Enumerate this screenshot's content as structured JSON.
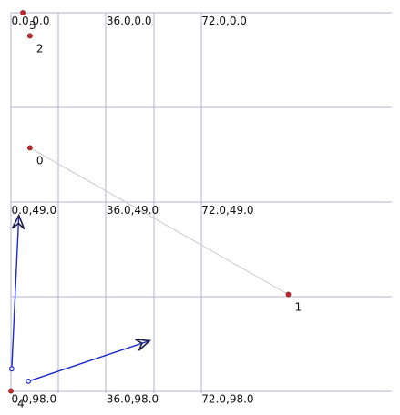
{
  "grid": {
    "x_values": [
      0,
      36,
      72
    ],
    "y_values": [
      0,
      49,
      98
    ],
    "labels": [
      {
        "id": "x0-y0",
        "text": "0.0,0.0"
      },
      {
        "id": "x36-y0",
        "text": "36.0,0.0"
      },
      {
        "id": "x72-y0",
        "text": "72.0,0.0"
      },
      {
        "id": "x0-y49",
        "text": "0.0,49.0"
      },
      {
        "id": "x36-y49",
        "text": "36.0,49.0"
      },
      {
        "id": "x72-y49",
        "text": "72.0,49.0"
      },
      {
        "id": "x0-y98",
        "text": "0.0,98.0"
      },
      {
        "id": "x36-y98",
        "text": "36.0,98.0"
      },
      {
        "id": "x72-y98",
        "text": "72.0,98.0"
      }
    ]
  },
  "points": [
    {
      "label": "0",
      "x": 7.2,
      "y": 35.0
    },
    {
      "label": "1",
      "x": 105.0,
      "y": 73.0
    },
    {
      "label": "2",
      "x": 7.2,
      "y": 6.0
    },
    {
      "label": "3",
      "x": 4.5,
      "y": 0.0
    },
    {
      "label": "4",
      "x": 0.0,
      "y": 98.0
    }
  ],
  "links": [
    {
      "from": "0",
      "to": "1"
    }
  ],
  "vectors": [
    {
      "x1": 0.3,
      "y1": 92.3,
      "x2": 3.0,
      "y2": 52.5
    },
    {
      "x1": 6.6,
      "y1": 95.5,
      "x2": 52.5,
      "y2": 85.0
    }
  ],
  "colors": {
    "grid": "#b3b3d6",
    "point": "#c0282e",
    "vector": "#1a2acc",
    "arrowhead": "#20204a",
    "link": "#c8c8d2"
  }
}
